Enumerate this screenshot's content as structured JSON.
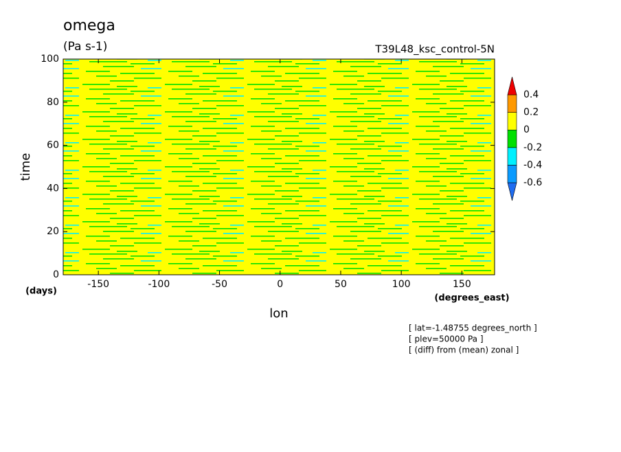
{
  "chart_data": {
    "type": "contour",
    "title": "omega",
    "subtitle": "(Pa s-1)",
    "dataset": "T39L48_ksc_control-5N",
    "x_label": "lon",
    "x_units": "(degrees_east)",
    "y_label": "time",
    "y_units": "(days)",
    "xlim": [
      -179,
      177
    ],
    "xticks": [
      -150,
      -100,
      -50,
      0,
      50,
      100,
      150
    ],
    "ylim": [
      0,
      100
    ],
    "yticks": [
      0,
      20,
      40,
      60,
      80,
      100
    ],
    "levels": [
      -0.6,
      -0.4,
      -0.2,
      0,
      0.2,
      0.4
    ],
    "colors": [
      "#1f6cf0",
      "#0a9bff",
      "#00f0ff",
      "#00e000",
      "#ffff00",
      "#ff9900",
      "#ee0000"
    ],
    "notes": [
      "[ lat=-1.48755 degrees_north ]",
      "[ plev=50000 Pa ]",
      "[ (diff) from (mean) zonal ]"
    ]
  }
}
